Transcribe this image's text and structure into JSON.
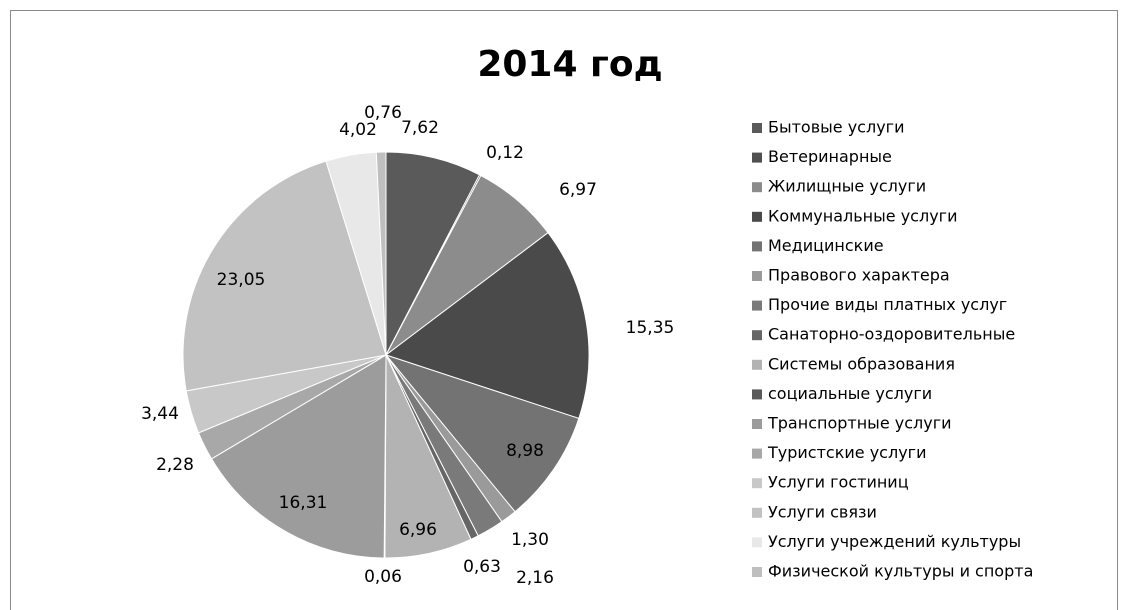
{
  "chart_data": {
    "type": "pie",
    "title": "2014 год",
    "categories": [
      "Бытовые услуги",
      "Ветеринарные",
      "Жилищные услуги",
      "Коммунальные услуги",
      "Медицинские",
      "Правового характера",
      "Прочие виды платных услуг",
      "Санаторно-оздоровительные",
      "Системы образования",
      "социальные услуги",
      "Транспортные услуги",
      "Туристские услуги",
      "Услуги гостиниц",
      "Услуги связи",
      "Услуги учреждений культуры",
      "Физической культуры и спорта"
    ],
    "values": [
      7.62,
      0.12,
      6.97,
      15.35,
      8.98,
      1.3,
      2.16,
      0.63,
      6.96,
      0.06,
      16.31,
      2.28,
      3.44,
      23.05,
      4.02,
      0.76
    ],
    "value_labels": [
      "7,62",
      "0,12",
      "6,97",
      "15,35",
      "8,98",
      "1,30",
      "2,16",
      "0,63",
      "6,96",
      "0,06",
      "16,31",
      "2,28",
      "3,44",
      "23,05",
      "4,02",
      "0,76"
    ],
    "colors": [
      "#5a5a5a",
      "#4f4f4f",
      "#8c8c8c",
      "#4a4a4a",
      "#737373",
      "#9a9a9a",
      "#7a7a7a",
      "#666666",
      "#b3b3b3",
      "#5a5a5a",
      "#9c9c9c",
      "#a8a8a8",
      "#c8c8c8",
      "#c2c2c2",
      "#e8e8e8",
      "#bfbfbf"
    ],
    "legend": "right"
  }
}
